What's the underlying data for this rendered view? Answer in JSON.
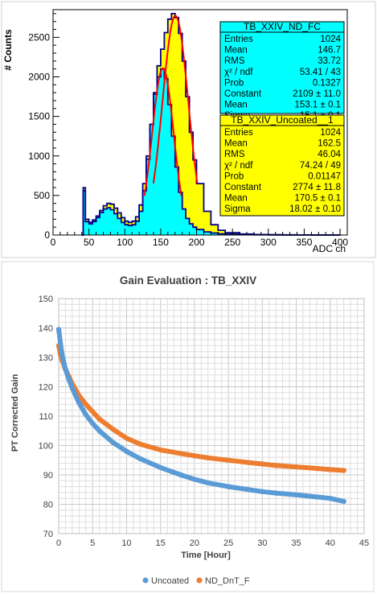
{
  "top_chart": {
    "chart_data": {
      "type": "bar",
      "title": "",
      "xlabel": "ADC ch",
      "ylabel": "# Counts",
      "xlim": [
        0,
        410
      ],
      "ylim": [
        0,
        2850
      ],
      "x_ticks": [
        0,
        50,
        100,
        150,
        200,
        250,
        300,
        350,
        400
      ],
      "y_ticks": [
        0,
        500,
        1000,
        1500,
        2000,
        2500
      ],
      "series": [
        {
          "name": "TB_XXIV_ND_FC",
          "style": "filled histogram",
          "color": "#00ffff",
          "x": [
            40,
            42,
            45,
            50,
            55,
            60,
            65,
            70,
            75,
            80,
            85,
            90,
            95,
            100,
            105,
            110,
            115,
            120,
            125,
            130,
            135,
            140,
            145,
            150,
            155,
            160,
            165,
            170,
            175,
            180,
            185,
            190,
            195,
            200,
            210,
            220,
            230,
            240,
            260,
            280,
            300,
            320,
            340,
            360,
            380,
            400
          ],
          "values": [
            0,
            560,
            170,
            140,
            170,
            220,
            285,
            330,
            345,
            320,
            270,
            210,
            160,
            130,
            120,
            130,
            175,
            300,
            560,
            960,
            1400,
            1780,
            2000,
            2100,
            1980,
            1650,
            1250,
            860,
            540,
            330,
            210,
            140,
            100,
            70,
            40,
            25,
            15,
            10,
            5,
            3,
            2,
            1,
            1,
            0,
            0,
            0
          ]
        },
        {
          "name": "TB_XXIV_Uncoated__1",
          "style": "filled histogram",
          "color": "#ffff00",
          "x": [
            40,
            42,
            45,
            50,
            55,
            60,
            65,
            70,
            75,
            80,
            85,
            90,
            95,
            100,
            105,
            110,
            115,
            120,
            125,
            130,
            135,
            140,
            145,
            150,
            155,
            160,
            165,
            170,
            175,
            180,
            185,
            190,
            195,
            200,
            210,
            220,
            230,
            240,
            260,
            280,
            300,
            320,
            340,
            360,
            380,
            400
          ],
          "values": [
            0,
            600,
            200,
            160,
            190,
            240,
            310,
            370,
            400,
            390,
            340,
            280,
            220,
            175,
            160,
            175,
            230,
            380,
            650,
            1000,
            1400,
            1800,
            2140,
            2350,
            2560,
            2730,
            2800,
            2750,
            2550,
            2200,
            1750,
            1300,
            950,
            650,
            300,
            130,
            60,
            30,
            12,
            6,
            3,
            2,
            1,
            0,
            0,
            0
          ]
        }
      ],
      "fits": [
        {
          "series": "TB_XXIV_ND_FC",
          "type": "gaussian",
          "constant": 2109,
          "mean": 153.1,
          "sigma": 15.1,
          "color": "#ff0000"
        },
        {
          "series": "TB_XXIV_Uncoated__1",
          "type": "gaussian",
          "constant": 2774,
          "mean": 170.5,
          "sigma": 18.02,
          "color": "#ff0000"
        }
      ]
    },
    "stat_boxes": [
      {
        "title": "TB_XXIV_ND_FC",
        "bg": "#00ffff",
        "rows": [
          {
            "k": "Entries",
            "v": "1024"
          },
          {
            "k": "Mean",
            "v": "146.7"
          },
          {
            "k": "RMS",
            "v": "33.72"
          },
          {
            "k": "χ² / ndf",
            "v": "53.41 / 43"
          },
          {
            "k": "Prob",
            "v": "0.1327"
          },
          {
            "k": "Constant",
            "v": "2109 ± 11.0"
          },
          {
            "k": "Mean",
            "v": "153.1 ± 0.1"
          },
          {
            "k": "Sigma",
            "v": "15.1 ± 0.1"
          }
        ]
      },
      {
        "title": "TB_XXIV_Uncoated__1",
        "bg": "#ffff00",
        "rows": [
          {
            "k": "Entries",
            "v": "1024"
          },
          {
            "k": "Mean",
            "v": "162.5"
          },
          {
            "k": "RMS",
            "v": "46.04"
          },
          {
            "k": "χ² / ndf",
            "v": "74.24 / 49"
          },
          {
            "k": "Prob",
            "v": "0.01147"
          },
          {
            "k": "Constant",
            "v": "2774 ± 11.8"
          },
          {
            "k": "Mean",
            "v": "170.5 ± 0.1"
          },
          {
            "k": "Sigma",
            "v": "18.02 ± 0.10"
          }
        ]
      }
    ]
  },
  "bottom_chart": {
    "chart_data": {
      "type": "scatter",
      "title": "Gain Evaluation : TB_XXIV",
      "xlabel": "Time [Hour]",
      "ylabel": "PT Corrected Gain",
      "xlim": [
        0,
        45
      ],
      "ylim": [
        70,
        150
      ],
      "x_ticks": [
        0,
        5,
        10,
        15,
        20,
        25,
        30,
        35,
        40,
        45
      ],
      "y_ticks": [
        70,
        80,
        90,
        100,
        110,
        120,
        130,
        140,
        150
      ],
      "grid": true,
      "legend_position": "bottom-center",
      "series": [
        {
          "name": "Uncoated",
          "color": "#5b9bd5",
          "x": [
            0,
            0.25,
            0.5,
            1,
            1.5,
            2,
            3,
            4,
            5,
            6,
            8,
            10,
            12,
            15,
            18,
            20,
            22,
            25,
            28,
            30,
            32,
            35,
            38,
            40,
            42
          ],
          "values": [
            139.5,
            135,
            131,
            126,
            122.5,
            119.5,
            114.5,
            110.5,
            107.5,
            105,
            101,
            98,
            95.5,
            92.5,
            90,
            88.5,
            87.3,
            86,
            85,
            84.3,
            83.8,
            83.2,
            82.5,
            82,
            81
          ]
        },
        {
          "name": "ND_DnT_F",
          "color": "#ed7d31",
          "x": [
            0,
            0.25,
            0.5,
            1,
            1.5,
            2,
            3,
            4,
            5,
            6,
            8,
            10,
            12,
            15,
            18,
            20,
            22,
            25,
            28,
            30,
            32,
            35,
            38,
            40,
            42
          ],
          "values": [
            134,
            131,
            129,
            126,
            123.5,
            121,
            117,
            114,
            111.5,
            109,
            105.5,
            102.5,
            100.5,
            98.5,
            97.3,
            96.5,
            95.8,
            95,
            94.2,
            93.7,
            93.2,
            92.7,
            92.2,
            91.8,
            91.5
          ]
        }
      ]
    }
  }
}
